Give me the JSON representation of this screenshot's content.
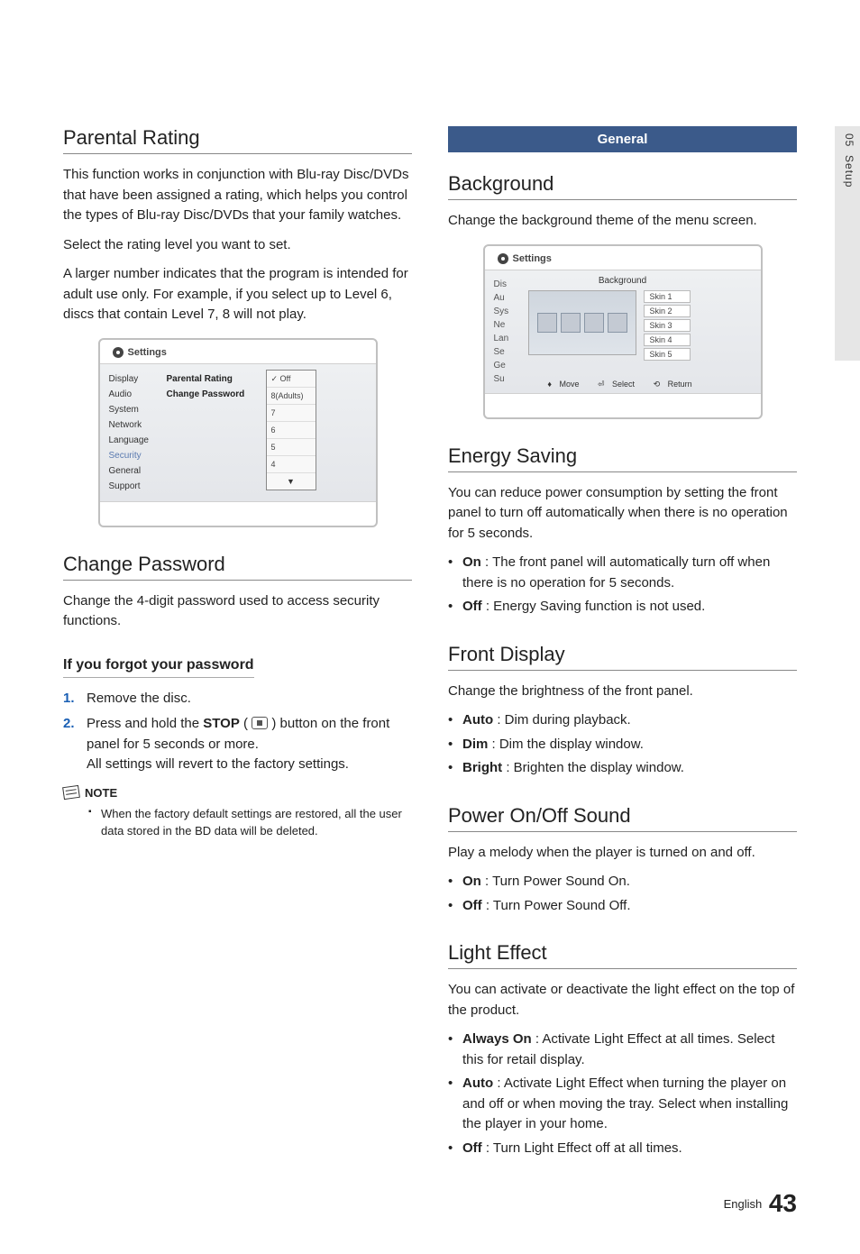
{
  "side_tab": {
    "chapter": "05",
    "name": "Setup"
  },
  "left": {
    "parental_rating": {
      "title": "Parental Rating",
      "p1": "This function works in conjunction with Blu-ray Disc/DVDs that have been assigned a rating, which helps you control the types of Blu-ray Disc/DVDs that your family watches.",
      "p2": "Select the rating level you want to set.",
      "p3": "A larger number indicates that the program is intended for adult use only. For example, if you select up to Level 6, discs that contain Level 7, 8 will not play."
    },
    "ui1": {
      "header": "Settings",
      "nav": [
        "Display",
        "Audio",
        "System",
        "Network",
        "Language",
        "Security",
        "General",
        "Support"
      ],
      "nav_active_index": 5,
      "mid": [
        "Parental Rating",
        "Change Password"
      ],
      "dropdown": [
        "Off",
        "8(Adults)",
        "7",
        "6",
        "5",
        "4"
      ],
      "dropdown_checked_index": 0
    },
    "change_password": {
      "title": "Change Password",
      "p1": "Change the 4-digit password used to access security functions.",
      "sub": "If you forgot your password",
      "step1": "Remove the disc.",
      "step2a": "Press and hold the ",
      "step2_stop": "STOP",
      "step2b": " button on the front panel for 5 seconds or more.",
      "step2c": "All settings will revert to the factory settings.",
      "note_label": "NOTE",
      "note1": "When the factory default settings are restored, all the user data stored in the BD data will be deleted."
    }
  },
  "right": {
    "general_bar": "General",
    "background": {
      "title": "Background",
      "p1": "Change the background theme of the menu screen."
    },
    "ui2": {
      "header": "Settings",
      "popup_title": "Background",
      "nav": [
        "Dis",
        "Au",
        "Sys",
        "Ne",
        "Lan",
        "Se",
        "Ge",
        "Su"
      ],
      "skins": [
        "Skin 1",
        "Skin 2",
        "Skin 3",
        "Skin 4",
        "Skin 5"
      ],
      "hints": {
        "move": "Move",
        "select": "Select",
        "return": "Return"
      }
    },
    "energy": {
      "title": "Energy Saving",
      "p1": "You can reduce power consumption by setting the front panel to turn off automatically when there is no operation for 5 seconds.",
      "on_label": "On",
      "on_text": " : The front panel will automatically turn off when there is no operation for 5 seconds.",
      "off_label": "Off",
      "off_text": " : Energy Saving function is not used."
    },
    "front": {
      "title": "Front Display",
      "p1": "Change the brightness of the front panel.",
      "auto_label": "Auto",
      "auto_text": " : Dim during playback.",
      "dim_label": "Dim",
      "dim_text": " : Dim the display window.",
      "bright_label": "Bright",
      "bright_text": " : Brighten the display window."
    },
    "power": {
      "title": "Power On/Off Sound",
      "p1": "Play a melody when the player is turned on and off.",
      "on_label": "On",
      "on_text": " : Turn Power Sound On.",
      "off_label": "Off",
      "off_text": " : Turn Power Sound Off."
    },
    "light": {
      "title": "Light Effect",
      "p1": "You can activate or deactivate the light effect on the top of the product.",
      "always_label": "Always On",
      "always_text": " : Activate Light Effect at all times. Select this for retail display.",
      "auto_label": "Auto",
      "auto_text": " : Activate Light Effect when turning the player on and off or when moving the tray. Select when installing the player in your home.",
      "off_label": "Off",
      "off_text": " : Turn Light Effect off at all times."
    }
  },
  "footer": {
    "lang": "English",
    "page": "43"
  },
  "colors": {
    "num_color": "#1a5fb4",
    "bar_color": "#3b5a8a",
    "tab_bg": "#e6e6e6"
  }
}
